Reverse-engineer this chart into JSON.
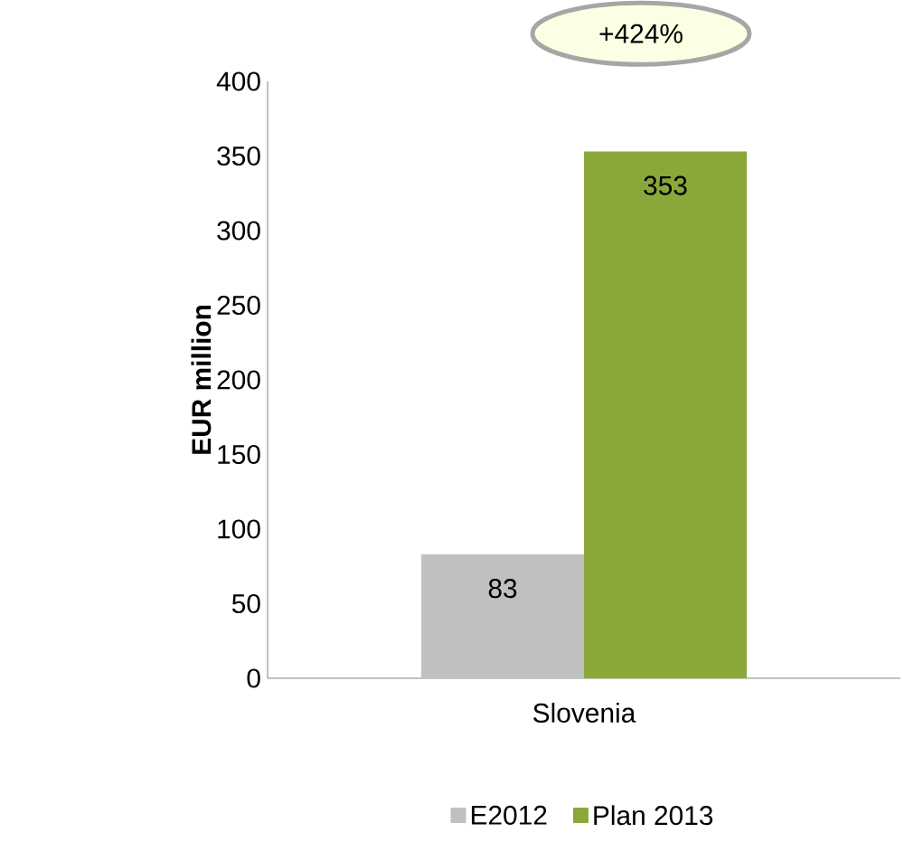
{
  "chart_data": {
    "type": "bar",
    "categories": [
      "Slovenia"
    ],
    "series": [
      {
        "name": "E2012",
        "color": "#c0c0c0",
        "values": [
          83
        ]
      },
      {
        "name": "Plan 2013",
        "color": "#8aa83a",
        "values": [
          353
        ]
      }
    ],
    "ylabel": "EUR million",
    "ylim": [
      0,
      400
    ],
    "yticks": [
      0,
      50,
      100,
      150,
      200,
      250,
      300,
      350,
      400
    ],
    "data_labels": true,
    "legend": "bottom",
    "grid": false,
    "annotations": [
      "+424%"
    ]
  }
}
